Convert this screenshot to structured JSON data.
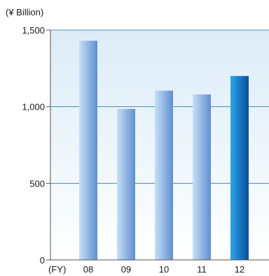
{
  "chart_data": {
    "type": "bar",
    "unit_label": "(¥ Billion)",
    "x_prefix_label": "(FY)",
    "categories": [
      "08",
      "09",
      "10",
      "11",
      "12"
    ],
    "values": [
      1430,
      985,
      1105,
      1080,
      1200
    ],
    "highlight_index": 4,
    "yticks": [
      0,
      500,
      1000,
      1500
    ],
    "ytick_labels": [
      "0",
      "500",
      "1,000",
      "1,500"
    ],
    "ylim": [
      0,
      1500
    ],
    "grid": true,
    "colors": {
      "bar_light": "#c7dff6",
      "bar_dark": "#5f8fd2",
      "highlight_light": "#2aa6ea",
      "highlight_dark": "#0a4f9a",
      "gridline": "#3e8fb0",
      "axis": "#555555",
      "background_top": "#dcecf7",
      "background_bottom": "#ffffff"
    }
  }
}
